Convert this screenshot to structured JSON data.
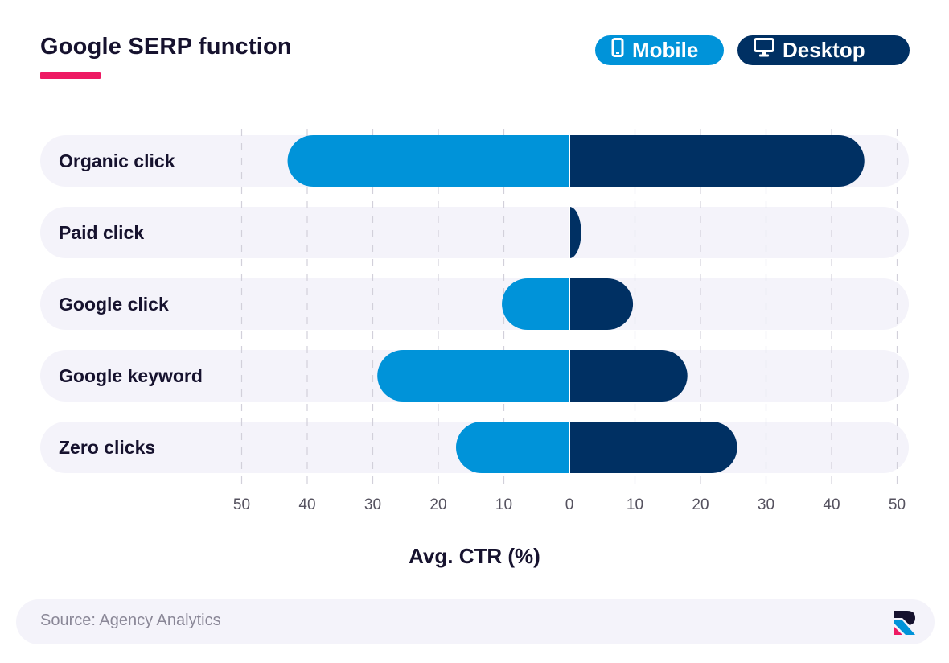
{
  "title": "Google SERP function",
  "legend": {
    "mobile_label": "Mobile",
    "mobile_icon": "smartphone-icon",
    "desktop_label": "Desktop",
    "desktop_icon": "monitor-icon"
  },
  "colors": {
    "mobile": "#0093d9",
    "desktop": "#003063",
    "row_background": "#f4f3fa",
    "accent": "#ee1a63",
    "text": "#16122e",
    "tick_text": "#55525f"
  },
  "chart_data": {
    "type": "bar",
    "orientation": "horizontal-diverging",
    "categories": [
      "Organic click",
      "Paid click",
      "Google click",
      "Google keyword",
      "Zero clicks"
    ],
    "series": [
      {
        "name": "Mobile",
        "values": [
          43,
          0,
          10.3,
          29.3,
          17.3
        ]
      },
      {
        "name": "Desktop",
        "values": [
          45,
          1.8,
          9.7,
          18,
          25.6
        ]
      }
    ],
    "xlabel": "Avg. CTR (%)",
    "xlim": [
      -50,
      50
    ],
    "x_ticks": [
      50,
      40,
      30,
      20,
      10,
      0,
      10,
      20,
      30,
      40,
      50
    ],
    "grid": true
  },
  "source": "Source: Agency Analytics",
  "logo_icon": "agency-analytics-logo-icon"
}
